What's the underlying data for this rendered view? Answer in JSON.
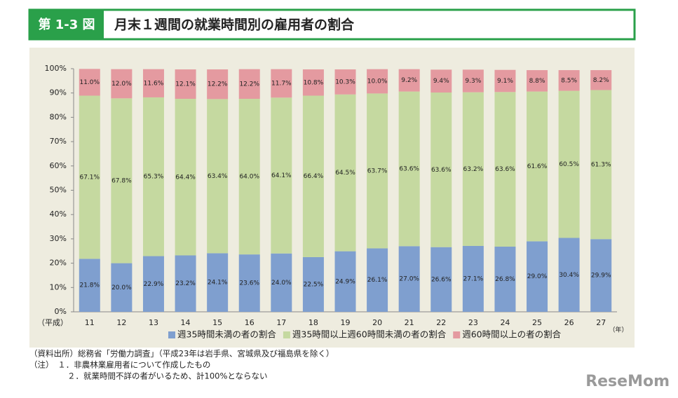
{
  "header": {
    "figure_no": "第 1-3 図",
    "title": "月末１週間の就業時間別の雇用者の割合"
  },
  "chart_data": {
    "type": "stacked-bar",
    "x_label": "（平成）",
    "x_unit": "（年）",
    "categories": [
      "11",
      "12",
      "13",
      "14",
      "15",
      "16",
      "17",
      "18",
      "19",
      "20",
      "21",
      "22",
      "23",
      "24",
      "25",
      "26",
      "27"
    ],
    "series": [
      {
        "name": "週35時間未満の者の割合",
        "color": "#7f9fcf",
        "values": [
          21.8,
          20.0,
          22.9,
          23.2,
          24.1,
          23.6,
          24.0,
          22.5,
          24.9,
          26.1,
          27.0,
          26.6,
          27.1,
          26.8,
          29.0,
          30.4,
          29.9
        ],
        "value_labels": [
          "21.8%",
          "20.0%",
          "22.9%",
          "23.2%",
          "24.1%",
          "23.6%",
          "24.0%",
          "22.5%",
          "24.9%",
          "26.1%",
          "27.0%",
          "26.6%",
          "27.1%",
          "26.8%",
          "29.0%",
          "30.4%",
          "29.9%"
        ]
      },
      {
        "name": "週35時間以上週60時間未満の者の割合",
        "color": "#c5d9a0",
        "values": [
          67.1,
          67.8,
          65.3,
          64.4,
          63.4,
          64.0,
          64.1,
          66.4,
          64.5,
          63.7,
          63.6,
          63.6,
          63.2,
          63.6,
          61.6,
          60.5,
          61.3
        ],
        "value_labels": [
          "67.1%",
          "67.8%",
          "65.3%",
          "64.4%",
          "63.4%",
          "64.0%",
          "64.1%",
          "66.4%",
          "64.5%",
          "63.7%",
          "63.6%",
          "63.6%",
          "63.2%",
          "63.6%",
          "61.6%",
          "60.5%",
          "61.3%"
        ]
      },
      {
        "name": "週60時間以上の者の割合",
        "color": "#e49aa0",
        "values": [
          11.0,
          12.0,
          11.6,
          12.1,
          12.2,
          12.2,
          11.7,
          10.8,
          10.3,
          10.0,
          9.2,
          9.4,
          9.3,
          9.1,
          8.8,
          8.5,
          8.2
        ],
        "value_labels": [
          "11.0%",
          "12.0%",
          "11.6%",
          "12.1%",
          "12.2%",
          "12.2%",
          "11.7%",
          "10.8%",
          "10.3%",
          "10.0%",
          "9.2%",
          "9.4%",
          "9.3%",
          "9.1%",
          "8.8%",
          "8.5%",
          "8.2%"
        ]
      }
    ],
    "ylim": [
      0,
      100
    ],
    "yticks": [
      {
        "value": 0,
        "label": "0%"
      },
      {
        "value": 10,
        "label": "10%"
      },
      {
        "value": 20,
        "label": "20%"
      },
      {
        "value": 30,
        "label": "30%"
      },
      {
        "value": 40,
        "label": "40%"
      },
      {
        "value": 50,
        "label": "50%"
      },
      {
        "value": 60,
        "label": "60%"
      },
      {
        "value": 70,
        "label": "70%"
      },
      {
        "value": 80,
        "label": "80%"
      },
      {
        "value": 90,
        "label": "90%"
      },
      {
        "value": 100,
        "label": "100%"
      }
    ],
    "grid": false,
    "legend": "bottom"
  },
  "notes": [
    "（資料出所）総務省「労働力調査」（平成23年は岩手県、宮城県及び福島県を除く）",
    "（注）　１．非農林業雇用者について作成したもの",
    "２．就業時間不詳の者がいるため、計100%とならない"
  ],
  "logo": "ReseMom"
}
